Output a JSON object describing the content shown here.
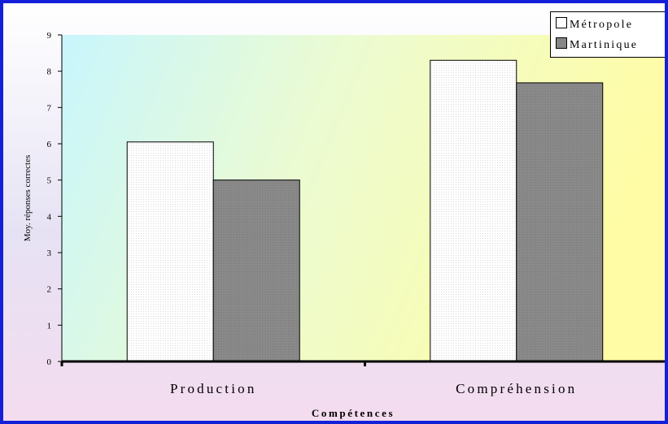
{
  "colors": {
    "frame_border": "#1420d8",
    "metropole": "#fbfbfb",
    "martinique": "#878787"
  },
  "chart_data": {
    "type": "bar",
    "categories": [
      "Production",
      "Compréhension"
    ],
    "series": [
      {
        "name": "Métropole",
        "values": [
          6.05,
          8.3
        ]
      },
      {
        "name": "Martinique",
        "values": [
          5.0,
          7.68
        ]
      }
    ],
    "xlabel": "Compétences",
    "ylabel": "Moy. réponses correctes",
    "ylim": [
      0,
      9
    ],
    "yticks": [
      0,
      1,
      2,
      3,
      4,
      5,
      6,
      7,
      8,
      9
    ],
    "grid": false,
    "legend_position": "top-right"
  },
  "legend": {
    "metropole_label": "Métropole",
    "martinique_label": "Martinique"
  }
}
